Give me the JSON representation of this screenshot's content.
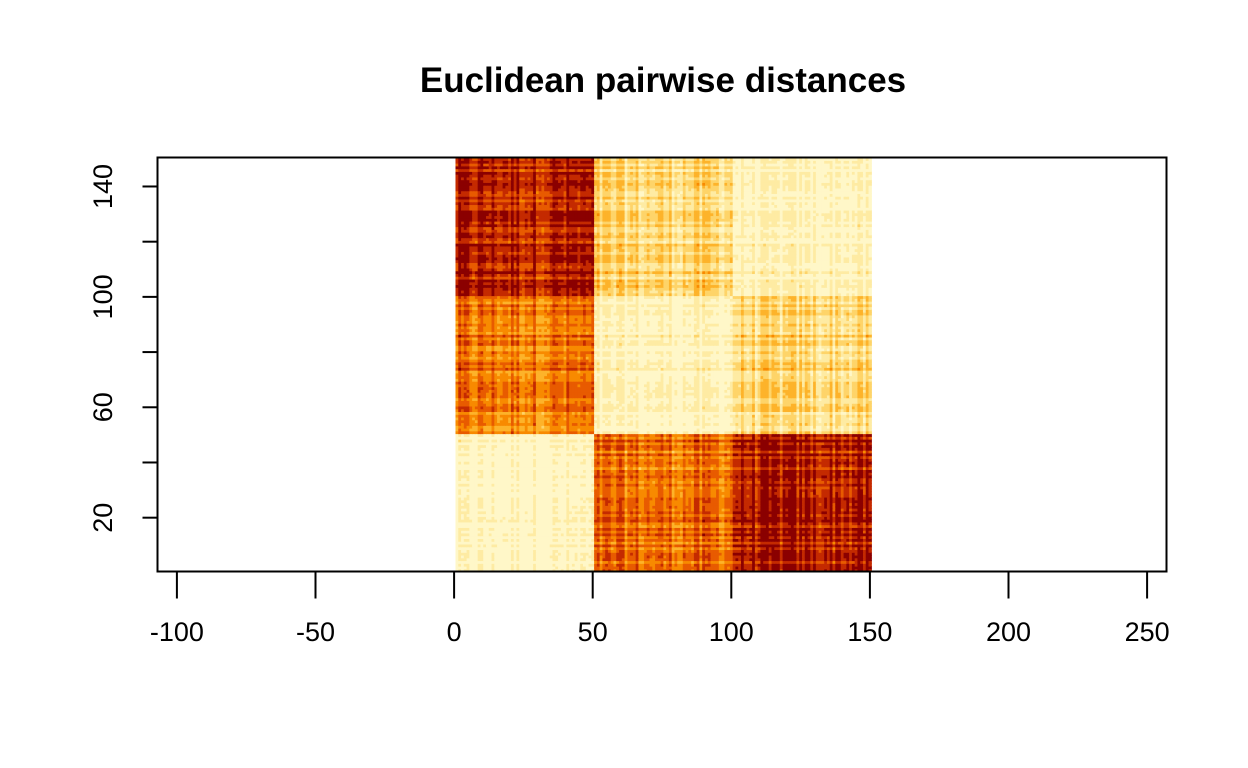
{
  "chart_data": {
    "type": "heatmap",
    "title": "Euclidean pairwise distances",
    "xlabel": "",
    "ylabel": "",
    "xlim": [
      -107,
      257
    ],
    "ylim": [
      0.5,
      150.5
    ],
    "x_ticks": [
      -100,
      -50,
      0,
      50,
      100,
      150,
      200,
      250
    ],
    "x_tick_labels": [
      "-100",
      "-50",
      "0",
      "50",
      "100",
      "150",
      "200",
      "250"
    ],
    "y_ticks": [
      20,
      40,
      60,
      80,
      100,
      120,
      140
    ],
    "y_tick_labels": [
      "20",
      "",
      "60",
      "",
      "100",
      "",
      "140"
    ],
    "grid": false,
    "legend": "none",
    "matrix_size": 150,
    "x_range": [
      0.5,
      150.5
    ],
    "y_range": [
      0.5,
      150.5
    ],
    "group_boundaries": [
      50,
      100
    ],
    "palette": [
      "#8b0000",
      "#c42a00",
      "#e85b00",
      "#f88a00",
      "#fdb32a",
      "#fed469",
      "#feeba3",
      "#fff7c8"
    ],
    "block_levels": {
      "description_rows_cols": "rows 1-50 / 51-100 / 101-150 by columns 1-50 / 51-100 / 101-150",
      "rows_1_50": [
        0.07,
        0.62,
        0.84
      ],
      "rows_51_100": [
        0.62,
        0.11,
        0.28
      ],
      "rows_101_150": [
        0.84,
        0.28,
        0.1
      ]
    }
  }
}
